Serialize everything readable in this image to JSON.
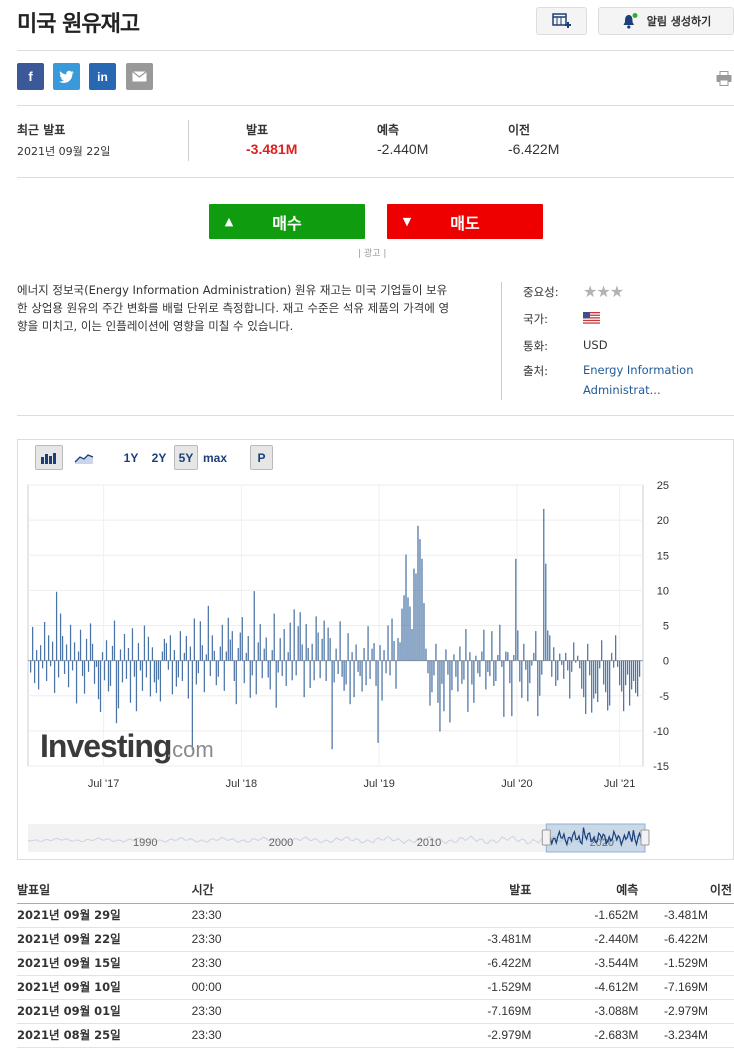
{
  "header": {
    "title": "미국 원유재고",
    "alert_label": "알림 생성하기"
  },
  "share": {
    "facebook": "f",
    "linkedin": "in"
  },
  "summary": {
    "latest_label": "최근 발표",
    "latest_date": "2021년 09월 22일",
    "actual_label": "발표",
    "actual_value": "-3.481M",
    "forecast_label": "예측",
    "forecast_value": "-2.440M",
    "previous_label": "이전",
    "previous_value": "-6.422M"
  },
  "trade": {
    "buy_label": "매수",
    "sell_label": "매도",
    "ad_label": "| 광고 |"
  },
  "description": "에너지 정보국(Energy Information Administration) 원유 재고는 미국 기업들이 보유한 상업용 원유의 주간 변화를 배럴 단위로 측정합니다. 재고 수준은 석유 제품의 가격에 영향을 미치고, 이는 인플레이션에 영향을 미칠 수 있습니다.",
  "info": {
    "importance_label": "중요성:",
    "importance_stars": 3,
    "country_label": "국가:",
    "currency_label": "통화:",
    "currency_value": "USD",
    "source_label": "출처:",
    "source_value": "Energy Information Administrat..."
  },
  "chart_toolbar": {
    "range_1y": "1Y",
    "range_2y": "2Y",
    "range_5y": "5Y",
    "range_max": "max",
    "p": "P"
  },
  "chart_data": {
    "type": "bar",
    "watermark": "Investing.com",
    "ylim": [
      -15,
      25
    ],
    "yticks": [
      25,
      20,
      15,
      10,
      5,
      0,
      -5,
      -10,
      -15
    ],
    "xtick_labels": [
      "Jul '17",
      "Jul '18",
      "Jul '19",
      "Jul '20",
      "Jul '21"
    ],
    "xtick_positions": [
      0.123,
      0.347,
      0.571,
      0.795,
      0.962
    ],
    "series": [
      {
        "values": [
          -1.7,
          4.8,
          -3.2,
          1.5,
          -4.1,
          2.2,
          -1.1,
          5.5,
          -2.9,
          3.6,
          -0.8,
          2.7,
          -4.6,
          9.8,
          -2.4,
          6.7,
          3.5,
          -1.9,
          2.3,
          -3.8,
          5.1,
          -1.4,
          2.6,
          -6.1,
          1.3,
          4.4,
          -2.2,
          -4.7,
          3.1,
          -1.6,
          5.3,
          2.4,
          -3.3,
          -0.9,
          -5.5,
          -7.3,
          1.2,
          -2.8,
          2.9,
          -4.4,
          -3.6,
          2.1,
          5.7,
          -8.9,
          -6.8,
          1.6,
          -3.1,
          3.8,
          -2.6,
          1.8,
          -6.0,
          4.6,
          -2.3,
          -7.2,
          2.5,
          -1.4,
          -4.3,
          5.0,
          -2.4,
          3.4,
          -5.1,
          1.9,
          -3.1,
          -4.6,
          -2.7,
          -5.8,
          1.3,
          3.1,
          2.5,
          -1.3,
          3.6,
          -4.8,
          1.5,
          -3.7,
          -2.4,
          4.2,
          -2.9,
          1.1,
          3.5,
          -5.4,
          2.0,
          -12.7,
          6.0,
          -3.4,
          -1.8,
          5.6,
          2.2,
          -4.5,
          0.9,
          7.8,
          -2.2,
          3.6,
          1.4,
          -3.5,
          -2.3,
          2.0,
          5.1,
          -4.3,
          1.3,
          6.1,
          3.0,
          4.2,
          -2.9,
          -6.2,
          1.8,
          4.0,
          6.2,
          -3.2,
          1.1,
          3.5,
          -5.3,
          -2.1,
          9.9,
          -4.8,
          2.6,
          5.2,
          -2.5,
          1.7,
          3.3,
          -2.4,
          -4.1,
          1.5,
          6.7,
          -6.7,
          -1.7,
          3.2,
          -2.2,
          4.5,
          -3.6,
          1.2,
          5.4,
          -2.8,
          7.3,
          -2.1,
          4.9,
          6.9,
          2.3,
          -5.2,
          5.2,
          1.8,
          -3.9,
          2.4,
          -2.8,
          6.3,
          4.0,
          -2.5,
          3.1,
          5.7,
          -2.9,
          4.7,
          3.2,
          -12.6,
          -3.1,
          1.7,
          -1.9,
          5.6,
          -2.3,
          -4.3,
          -3.4,
          3.9,
          -6.2,
          1.2,
          -5.2,
          2.3,
          -1.6,
          -2.2,
          -4.4,
          1.8,
          -3.5,
          4.9,
          -2.6,
          1.7,
          2.5,
          -3.6,
          -11.7,
          2.2,
          -5.7,
          1.5,
          -1.8,
          5.0,
          -2.1,
          6.0,
          2.8,
          -4.0,
          3.2,
          2.6,
          7.4,
          9.3,
          15.1,
          9.0,
          7.7,
          4.5,
          13.1,
          12.4,
          19.2,
          17.3,
          14.5,
          8.2,
          1.7,
          -1.8,
          -6.4,
          -4.5,
          -2.1,
          2.4,
          -6.0,
          -10.1,
          -3.3,
          -7.2,
          1.6,
          -2.0,
          -8.8,
          -4.2,
          0.9,
          -2.3,
          -4.4,
          2.0,
          -3.3,
          -2.7,
          4.5,
          -7.3,
          1.2,
          -3.4,
          -6.0,
          0.7,
          -1.8,
          -2.3,
          1.3,
          4.4,
          -4.1,
          -1.6,
          -2.2,
          4.2,
          -3.6,
          -2.9,
          0.8,
          5.1,
          -0.9,
          -8.0,
          1.3,
          1.2,
          -3.2,
          -7.9,
          0.8,
          14.5,
          4.3,
          -3.0,
          -5.3,
          2.4,
          -1.3,
          -5.8,
          -3.2,
          -0.7,
          1.1,
          4.2,
          -7.9,
          -5.0,
          -2.0,
          21.6,
          13.8,
          4.3,
          3.6,
          -2.3,
          1.9,
          -3.6,
          -2.8,
          1.0,
          -0.6,
          -2.6,
          1.1,
          -1.4,
          -5.4,
          -1.6,
          2.6,
          -0.3,
          0.7,
          -1.1,
          -4.0,
          -5.2,
          -7.6,
          2.4,
          -2.1,
          -7.4,
          -5.4,
          -4.7,
          -5.9,
          -1.1,
          2.9,
          -3.4,
          -4.5,
          -7.1,
          -6.4,
          1.1,
          -1.0,
          3.6,
          -0.9,
          -3.5,
          -4.4,
          -7.2,
          -3.5,
          -2.0,
          -6.4,
          -4.1,
          -2.9,
          -4.6,
          -5.1,
          -2.3
        ]
      }
    ]
  },
  "navigator": {
    "labels": [
      "1990",
      "2000",
      "2010",
      "2020"
    ],
    "positions": [
      0.19,
      0.41,
      0.65,
      0.93
    ],
    "window_start": 0.84,
    "window_end": 1.0
  },
  "history": {
    "headers": [
      "발표일",
      "시간",
      "발표",
      "예측",
      "이전"
    ],
    "rows": [
      {
        "date": "2021년 09월 29일",
        "time": "23:30",
        "actual": "",
        "actual_class": "",
        "forecast": "-1.652M",
        "previous": "-3.481M"
      },
      {
        "date": "2021년 09월 22일",
        "time": "23:30",
        "actual": "-3.481M",
        "actual_class": "neg",
        "forecast": "-2.440M",
        "previous": "-6.422M"
      },
      {
        "date": "2021년 09월 15일",
        "time": "23:30",
        "actual": "-6.422M",
        "actual_class": "neg",
        "forecast": "-3.544M",
        "previous": "-1.529M"
      },
      {
        "date": "2021년 09월 10일",
        "time": "00:00",
        "actual": "-1.529M",
        "actual_class": "pos",
        "forecast": "-4.612M",
        "previous": "-7.169M"
      },
      {
        "date": "2021년 09월 01일",
        "time": "23:30",
        "actual": "-7.169M",
        "actual_class": "neg",
        "forecast": "-3.088M",
        "previous": "-2.979M"
      },
      {
        "date": "2021년 08월 25일",
        "time": "23:30",
        "actual": "-2.979M",
        "actual_class": "neg",
        "forecast": "-2.683M",
        "previous": "-3.234M"
      }
    ]
  },
  "colors": {
    "bar": "#4a73a6",
    "negative": "#e02020",
    "positive": "#1e90c0",
    "buy": "#0f9d0f",
    "sell": "#ee0000"
  }
}
